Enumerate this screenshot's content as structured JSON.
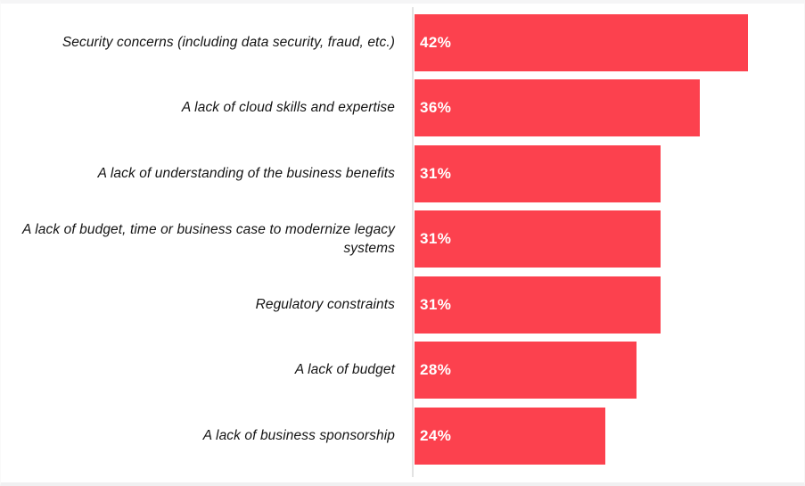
{
  "chart_data": {
    "type": "bar",
    "orientation": "horizontal",
    "title": "",
    "xlabel": "",
    "ylabel": "",
    "grid": false,
    "legend": false,
    "xlim": [
      0,
      47
    ],
    "categories": [
      "Security concerns (including data security, fraud, etc.)",
      "A lack of cloud skills and expertise",
      "A lack of understanding of the business benefits",
      "A lack of budget, time or business case to modernize legacy systems",
      "Regulatory constraints",
      "A lack of budget",
      "A lack of business sponsorship"
    ],
    "values": [
      42,
      36,
      31,
      31,
      31,
      28,
      24
    ],
    "value_labels": [
      "42%",
      "36%",
      "31%",
      "31%",
      "31%",
      "28%",
      "24%"
    ],
    "colors": {
      "bar": "#FC414E",
      "value_label": "#FFFFFF",
      "category_label": "#141414",
      "axis_line": "#E3E3E3",
      "background": "#FFFFFF"
    }
  }
}
